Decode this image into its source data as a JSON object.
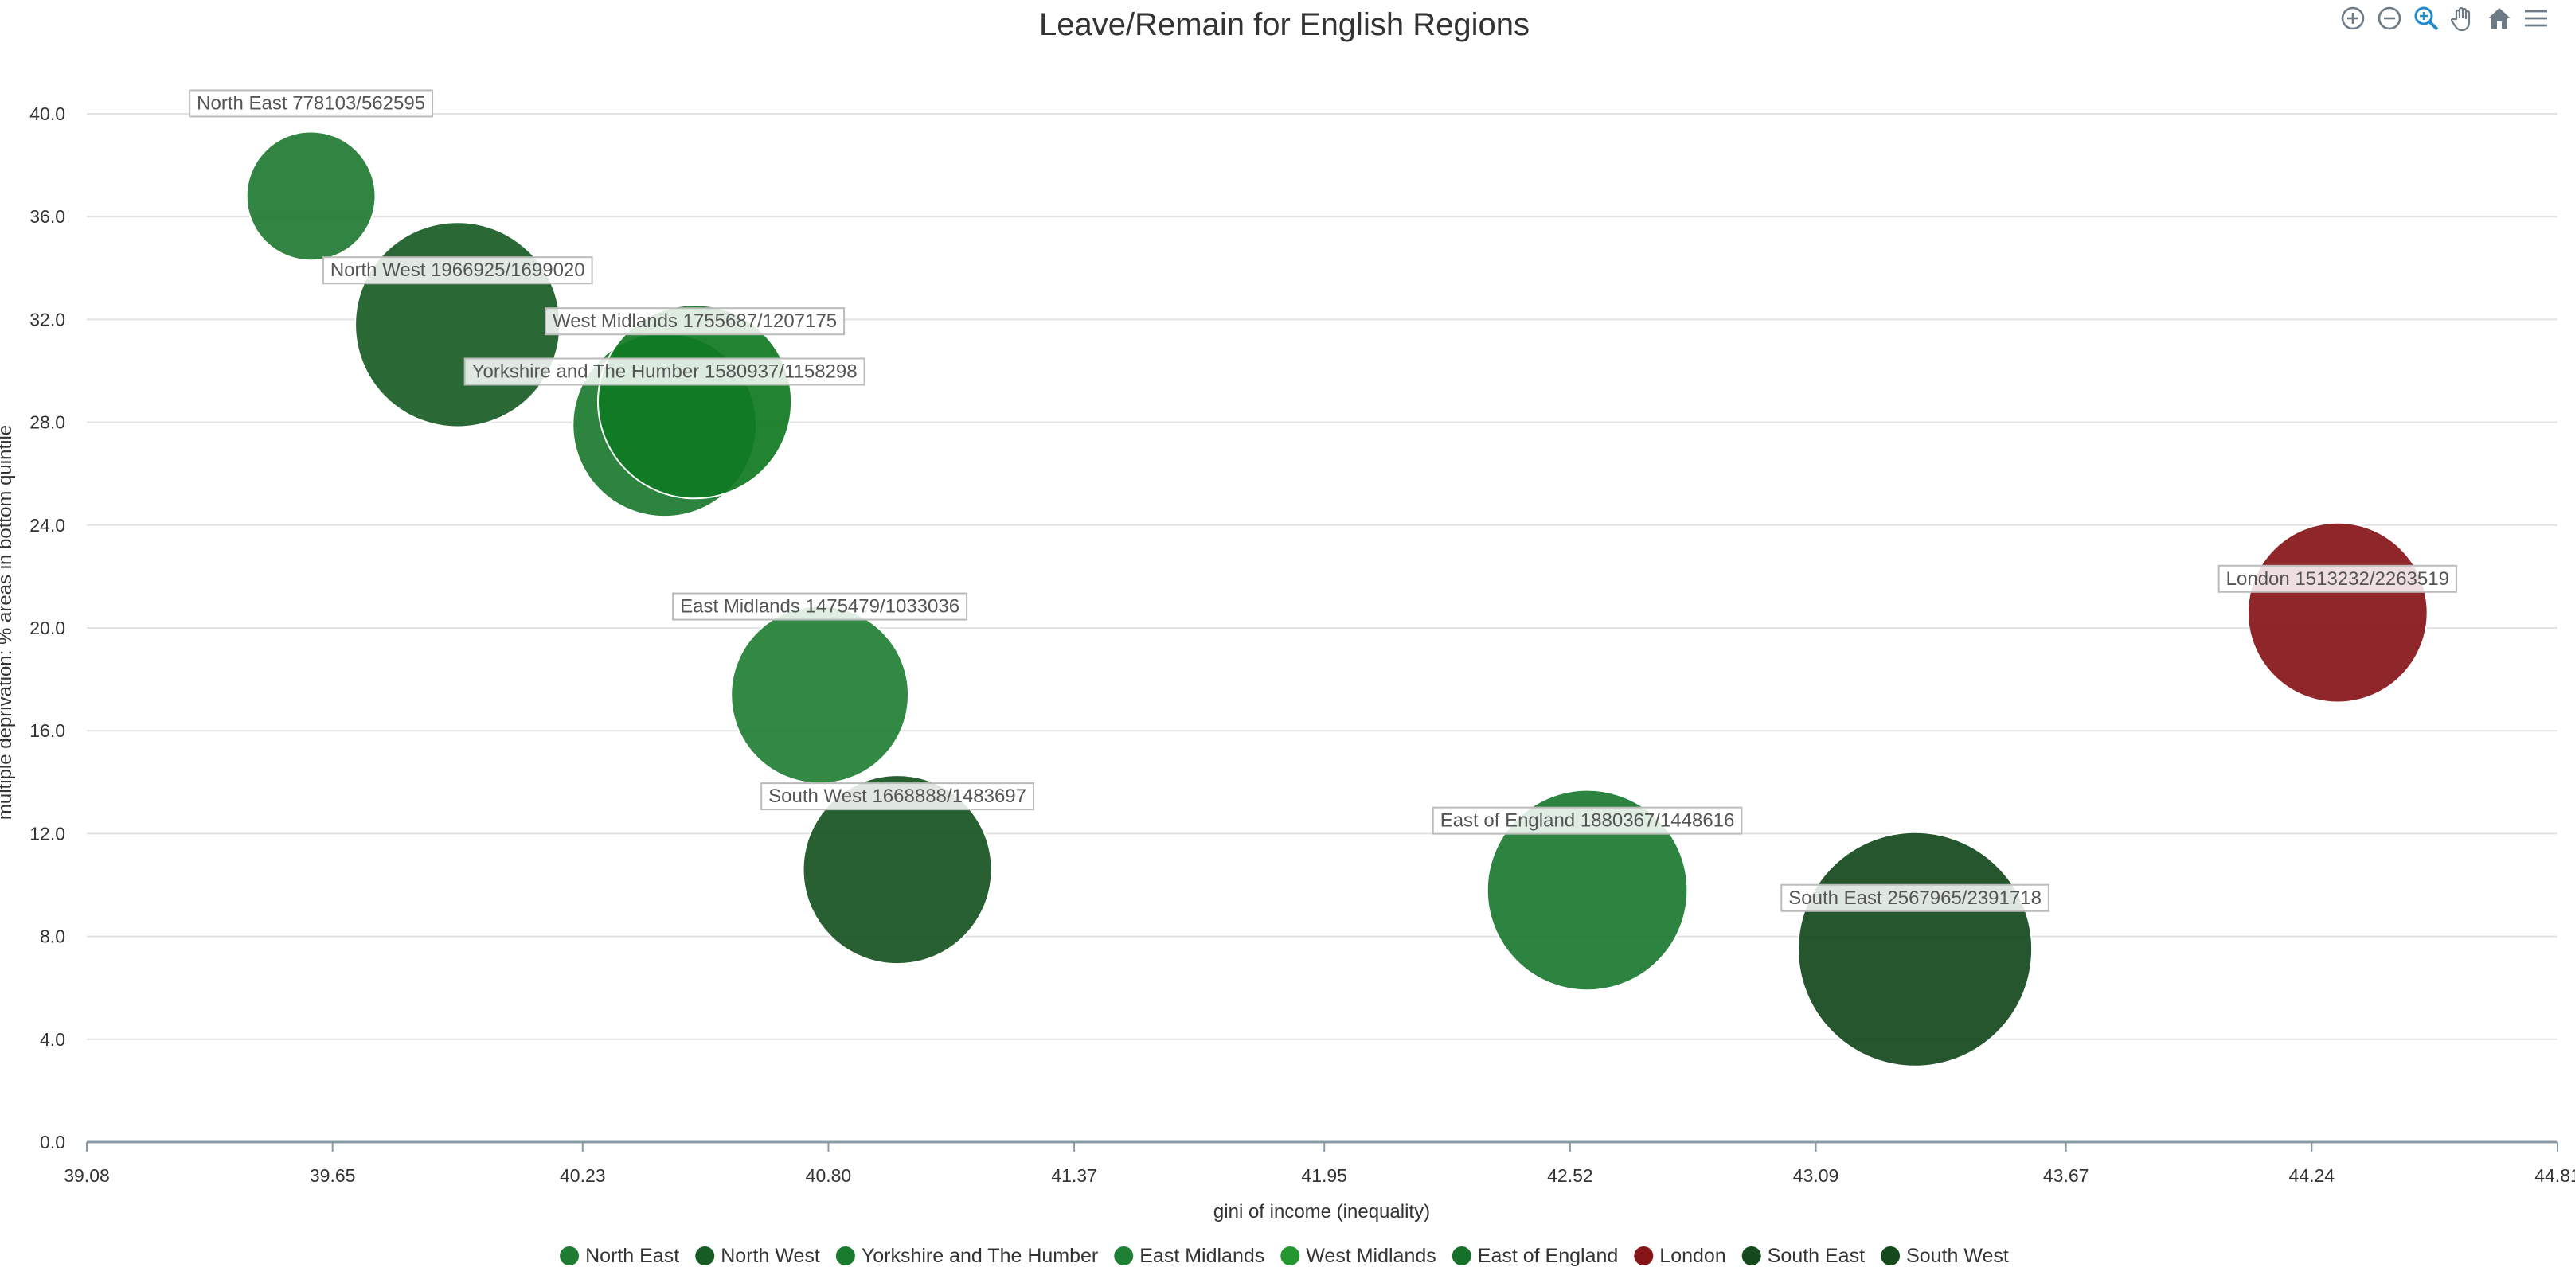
{
  "chart_data": {
    "type": "scatter",
    "title": "Leave/Remain for English Regions",
    "xlabel": "gini of income (inequality)",
    "ylabel": "multiple deprivation: % areas in bottom quintile",
    "xlim": [
      39.08,
      44.81
    ],
    "ylim": [
      0.0,
      40.0
    ],
    "x_ticks": [
      "39.08",
      "39.65",
      "40.23",
      "40.80",
      "41.37",
      "41.95",
      "42.52",
      "43.09",
      "43.67",
      "44.24",
      "44.81"
    ],
    "y_ticks": [
      "0.0",
      "4.0",
      "8.0",
      "12.0",
      "16.0",
      "20.0",
      "24.0",
      "28.0",
      "32.0",
      "36.0",
      "40.0"
    ],
    "grid": true,
    "legend_position": "bottom",
    "series": [
      {
        "name": "North East",
        "x": 39.6,
        "y": 36.8,
        "size": 778103,
        "label": "North East 778103/562595",
        "color": "#1f7a32"
      },
      {
        "name": "North West",
        "x": 39.94,
        "y": 31.8,
        "size": 1966925,
        "label": "North West 1966925/1699020",
        "color": "#185c25"
      },
      {
        "name": "Yorkshire and The Humber",
        "x": 40.42,
        "y": 27.9,
        "size": 1580937,
        "label": "Yorkshire and The Humber 1580937/1158298",
        "color": "#1a7a2e"
      },
      {
        "name": "East Midlands",
        "x": 40.78,
        "y": 17.4,
        "size": 1475479,
        "label": "East Midlands 1475479/1033036",
        "color": "#1f7f34"
      },
      {
        "name": "West Midlands",
        "x": 40.49,
        "y": 28.8,
        "size": 1755687,
        "label": "West Midlands 1755687/1207175",
        "color": "#0f7a22"
      },
      {
        "name": "East of England",
        "x": 42.56,
        "y": 9.8,
        "size": 1880367,
        "label": "East of England 1880367/1448616",
        "color": "#1b7a30"
      },
      {
        "name": "London",
        "x": 44.3,
        "y": 20.6,
        "size": 1513232,
        "label": "London 1513232/2263519",
        "color": "#861518"
      },
      {
        "name": "South East",
        "x": 43.32,
        "y": 7.5,
        "size": 2567965,
        "label": "South East 2567965/2391718",
        "color": "#12481c"
      },
      {
        "name": "South West",
        "x": 40.96,
        "y": 10.6,
        "size": 1668888,
        "label": "South West 1668888/1483697",
        "color": "#17521f"
      }
    ],
    "legend_colors": [
      "#1f7a32",
      "#185c25",
      "#1a7a2e",
      "#1f7f34",
      "#23962f",
      "#17702a",
      "#861518",
      "#144a1c",
      "#144a1c"
    ]
  },
  "toolbar": {
    "icons": [
      "zoom-in-icon",
      "zoom-out-icon",
      "magnifier-icon",
      "pan-hand-icon",
      "home-icon",
      "menu-icon"
    ],
    "active_color": "#2288cc",
    "icon_color": "#6e7b87"
  }
}
